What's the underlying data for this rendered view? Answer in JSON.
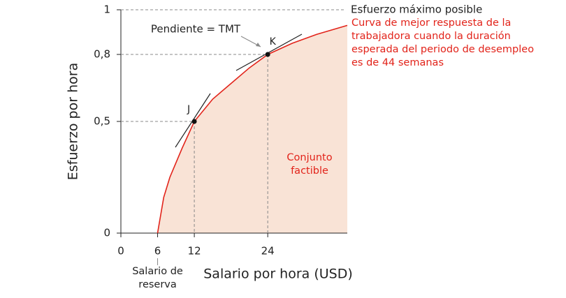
{
  "chart_data": {
    "type": "line",
    "x_label": "Salario por hora (USD)",
    "y_label": "Esfuerzo por hora",
    "xlim": [
      0,
      37
    ],
    "ylim": [
      0,
      1
    ],
    "xticks": [
      0,
      6,
      12,
      24
    ],
    "yticks": [
      0,
      {
        "value": 0.5,
        "label": "0,5"
      },
      {
        "value": 0.8,
        "label": "0,8"
      },
      1
    ],
    "x": [
      6,
      7,
      8,
      10,
      12,
      15,
      18,
      21,
      24,
      28,
      32,
      37
    ],
    "series": [
      {
        "name": "Curva de mejor respuesta de la trabajadora cuando la duración esperada del periodo de desempleo es de 44 semanas",
        "color": "#e2231a",
        "fill": "#f9e3d6",
        "values": [
          0,
          0.16,
          0.25,
          0.38,
          0.5,
          0.6,
          0.67,
          0.74,
          0.8,
          0.85,
          0.89,
          0.93
        ]
      }
    ],
    "max_line": {
      "y": 1,
      "label": "Esfuerzo máximo posible"
    },
    "points": [
      {
        "label": "J",
        "x": 12,
        "y": 0.5
      },
      {
        "label": "K",
        "x": 24,
        "y": 0.8
      }
    ],
    "slope_label": "Pendiente = TMT",
    "area_label": "Conjunto factible",
    "reservation_label": "Salario de reserva"
  }
}
